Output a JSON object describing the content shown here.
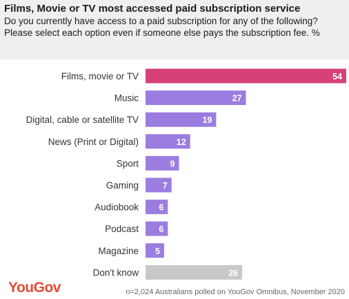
{
  "header": {
    "title": "Films, Movie or TV most accessed paid subscription service",
    "subtitle": "Do you currently have access to a paid subscription for any of the following? Please select each option even if someone else pays the subscription fee. %"
  },
  "chart_data": {
    "type": "bar",
    "orientation": "horizontal",
    "categories": [
      "Films, movie or TV",
      "Music",
      "Digital, cable or satellite TV",
      "News (Print or Digital)",
      "Sport",
      "Gaming",
      "Audiobook",
      "Podcast",
      "Magazine",
      "Don't know"
    ],
    "values": [
      54,
      27,
      19,
      12,
      9,
      7,
      6,
      6,
      5,
      26
    ],
    "colors": [
      "#d6417a",
      "#9b7de0",
      "#9b7de0",
      "#9b7de0",
      "#9b7de0",
      "#9b7de0",
      "#9b7de0",
      "#9b7de0",
      "#9b7de0",
      "#c8c8c8"
    ],
    "value_label_color": "#ffffff",
    "xlim": [
      0,
      54
    ],
    "grid": false,
    "legend": "none"
  },
  "footer": {
    "logo": "YouGov",
    "logo_color": "#e24a33",
    "note": "n=2,024 Australians polled on YouGov Omnibus, November 2020"
  }
}
